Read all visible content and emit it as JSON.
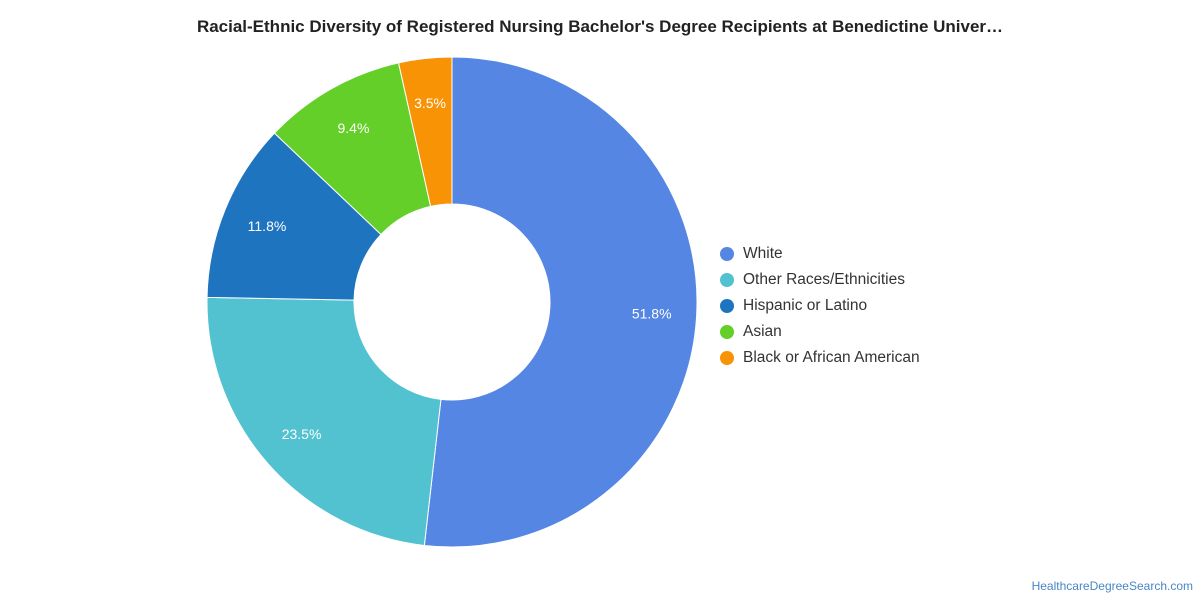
{
  "chart_data": {
    "type": "pie",
    "title": "Racial-Ethnic Diversity of Registered Nursing Bachelor's Degree Recipients at Benedictine Univer…",
    "donut": true,
    "legend_position": "right",
    "slices": [
      {
        "name": "White",
        "value": 51.8,
        "label": "51.8%",
        "color": "#5586e3"
      },
      {
        "name": "Other Races/Ethnicities",
        "value": 23.5,
        "label": "23.5%",
        "color": "#52c2d0"
      },
      {
        "name": "Hispanic or Latino",
        "value": 11.8,
        "label": "11.8%",
        "color": "#1f74bf"
      },
      {
        "name": "Asian",
        "value": 9.4,
        "label": "9.4%",
        "color": "#63cf28"
      },
      {
        "name": "Black or African American",
        "value": 3.5,
        "label": "3.5%",
        "color": "#f79304"
      }
    ]
  },
  "source": {
    "label": "HealthcareDegreeSearch.com"
  }
}
